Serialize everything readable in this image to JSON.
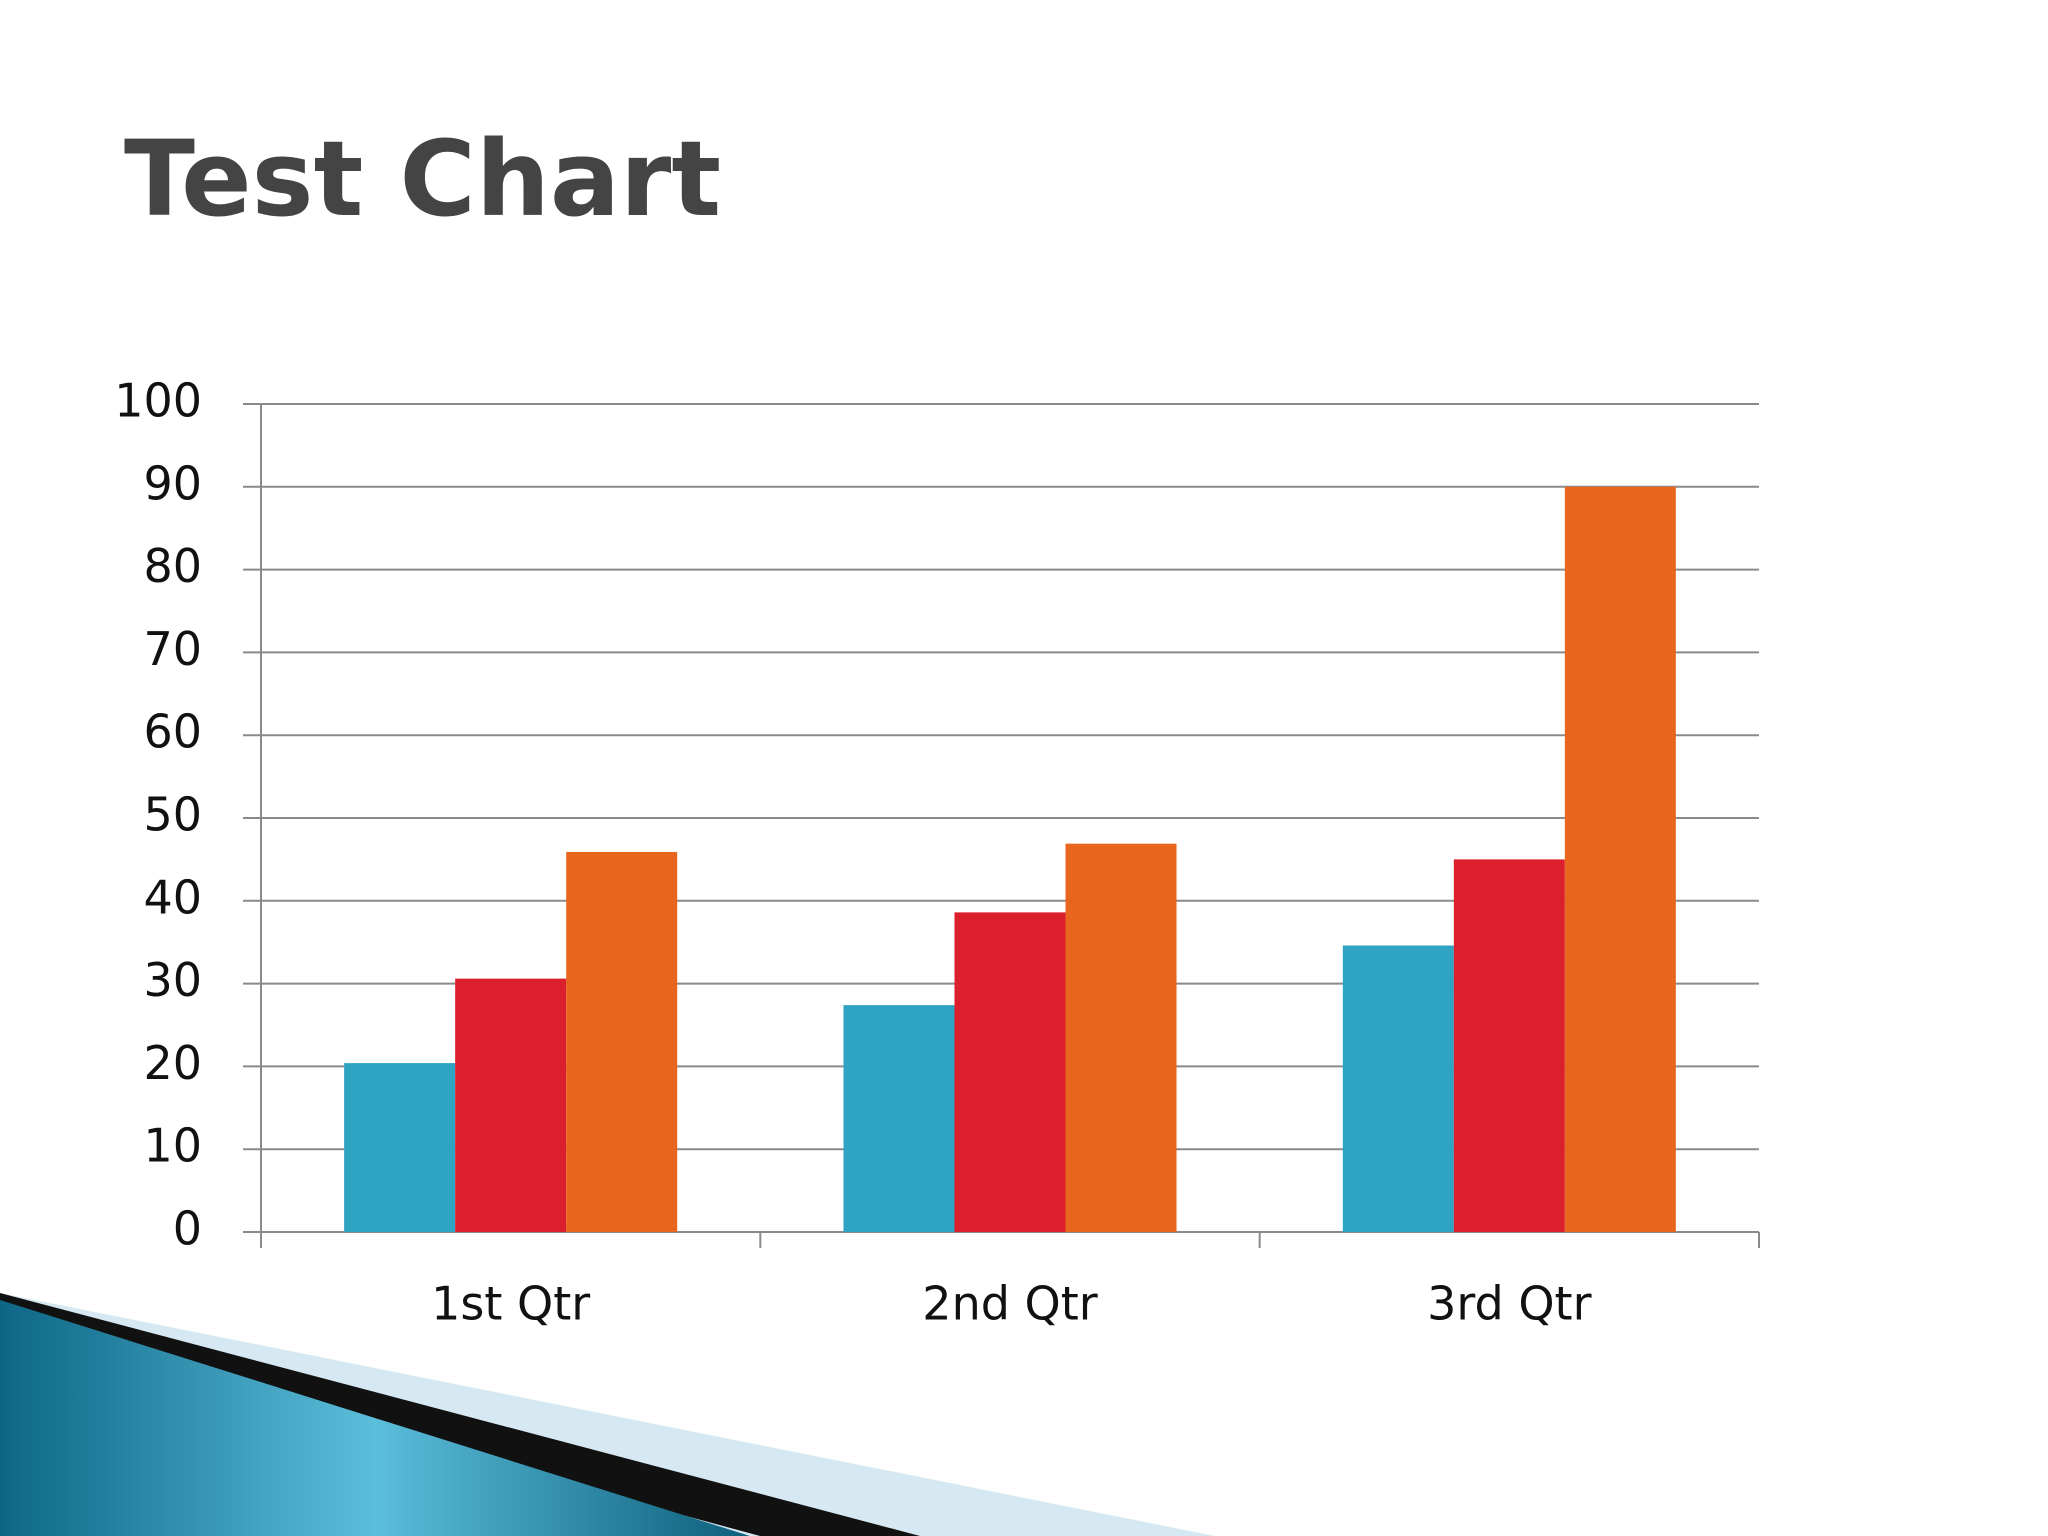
{
  "chart_data": {
    "type": "bar",
    "title": "Test Chart",
    "categories": [
      "1st Qtr",
      "2nd Qtr",
      "3rd Qtr"
    ],
    "series": [
      {
        "color": "#2ea3c2",
        "values": [
          20.4,
          27.4,
          34.6
        ]
      },
      {
        "color": "#dc1f2c",
        "values": [
          30.6,
          38.6,
          45
        ]
      },
      {
        "color": "#e8651e",
        "values": [
          45.9,
          46.9,
          90
        ]
      }
    ],
    "ylim": [
      0,
      100
    ],
    "yticks": [
      0,
      10,
      20,
      30,
      40,
      50,
      60,
      70,
      80,
      90,
      100
    ],
    "grid": true
  }
}
